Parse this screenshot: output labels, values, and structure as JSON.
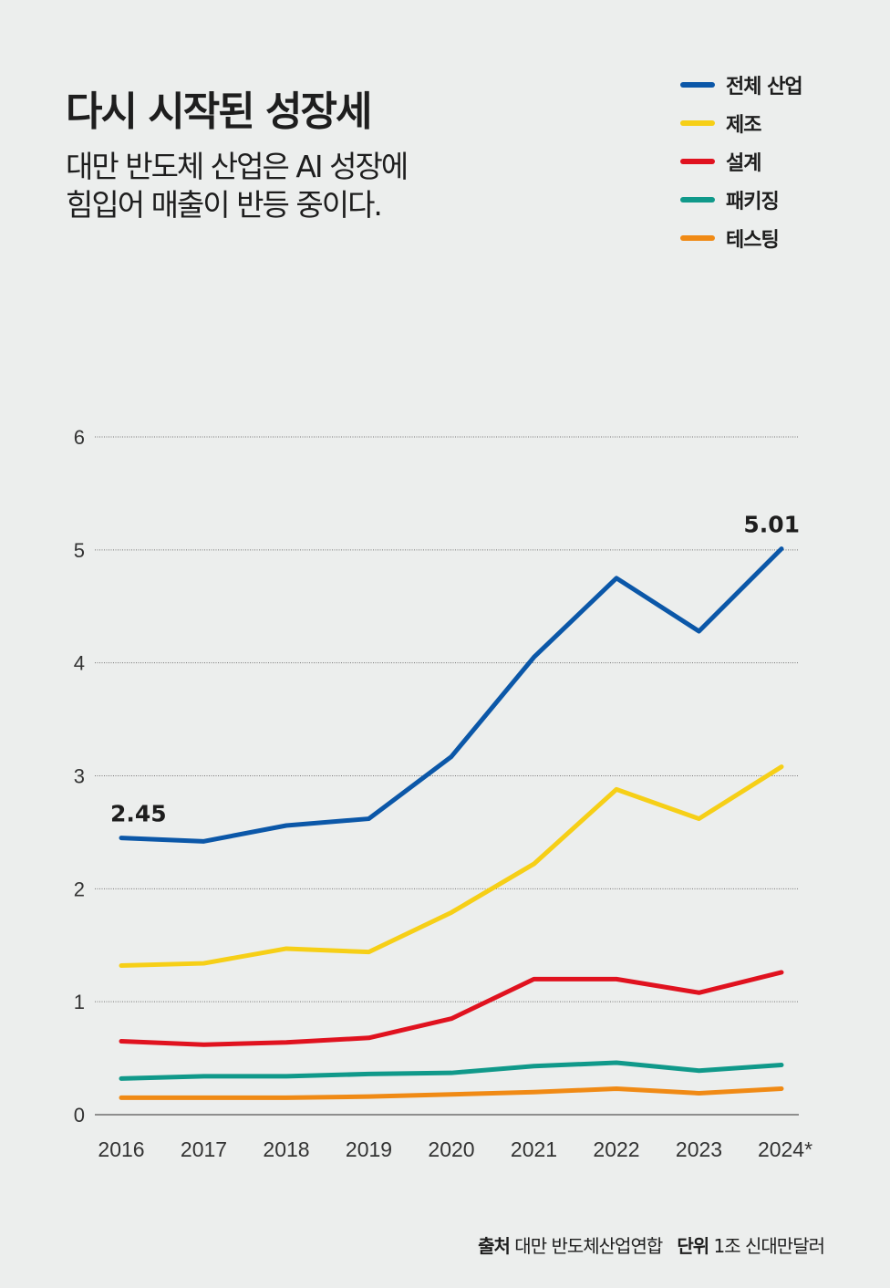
{
  "title": "다시 시작된 성장세",
  "subtitle_lines": [
    "대만 반도체 산업은 AI 성장에",
    "힘입어 매출이 반등 중이다."
  ],
  "footer": {
    "source_label": "출처",
    "source": "대만 반도체산업연합",
    "unit_label": "단위",
    "unit": "1조 신대만달러"
  },
  "chart_data": {
    "type": "line",
    "categories": [
      "2016",
      "2017",
      "2018",
      "2019",
      "2020",
      "2021",
      "2022",
      "2023",
      "2024*"
    ],
    "ylim": [
      0,
      6
    ],
    "yticks": [
      "0",
      "1",
      "2",
      "3",
      "4",
      "5",
      "6"
    ],
    "grid": true,
    "legend_position": "top-right",
    "series": [
      {
        "name": "전체 산업",
        "color": "#0b57a8",
        "values": [
          2.45,
          2.42,
          2.56,
          2.62,
          3.17,
          4.05,
          4.75,
          4.28,
          5.01
        ]
      },
      {
        "name": "제조",
        "color": "#f6cf17",
        "values": [
          1.32,
          1.34,
          1.47,
          1.44,
          1.79,
          2.22,
          2.88,
          2.62,
          3.08
        ]
      },
      {
        "name": "설계",
        "color": "#e0121f",
        "values": [
          0.65,
          0.62,
          0.64,
          0.68,
          0.85,
          1.2,
          1.2,
          1.08,
          1.26
        ]
      },
      {
        "name": "패키징",
        "color": "#10998a",
        "values": [
          0.32,
          0.34,
          0.34,
          0.36,
          0.37,
          0.43,
          0.46,
          0.39,
          0.44
        ]
      },
      {
        "name": "테스팅",
        "color": "#f08a15",
        "values": [
          0.15,
          0.15,
          0.15,
          0.16,
          0.18,
          0.2,
          0.23,
          0.19,
          0.23
        ]
      }
    ],
    "annotations": [
      {
        "series": 0,
        "index": 0,
        "text": "2.45"
      },
      {
        "series": 0,
        "index": 8,
        "text": "5.01"
      }
    ]
  }
}
